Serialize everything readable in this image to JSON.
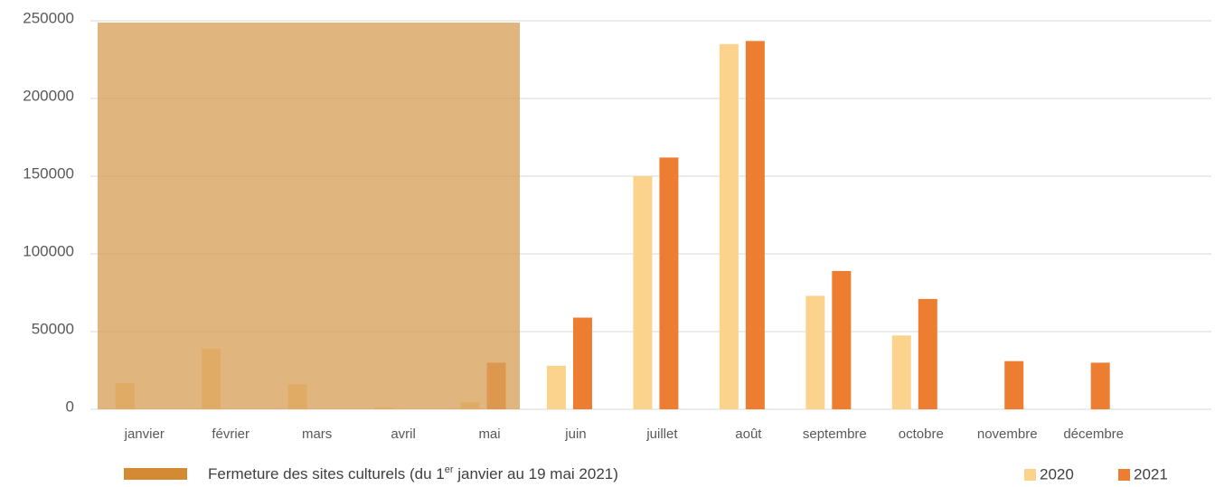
{
  "chart_data": {
    "type": "bar",
    "categories": [
      "janvier",
      "février",
      "mars",
      "avril",
      "mai",
      "juin",
      "juillet",
      "août",
      "septembre",
      "octobre",
      "novembre",
      "décembre"
    ],
    "series": [
      {
        "name": "2020",
        "color": "#fbd38d",
        "values": [
          17000,
          39000,
          16000,
          1000,
          4500,
          28000,
          150000,
          235000,
          73000,
          47500,
          null,
          null
        ]
      },
      {
        "name": "2021",
        "color": "#ed7d31",
        "values": [
          null,
          null,
          null,
          null,
          30000,
          59000,
          162000,
          237000,
          89000,
          71000,
          31000,
          30000
        ]
      }
    ],
    "closure": {
      "label_parts": [
        "Fermeture des sites culturels (du 1",
        "er",
        " janvier au 19 mai 2021)"
      ],
      "color": "#d48a32",
      "shade_color": "#d9a05a"
    },
    "ylim": [
      0,
      250000
    ],
    "yticks": [
      0,
      50000,
      100000,
      150000,
      200000,
      250000
    ],
    "grid": true
  }
}
